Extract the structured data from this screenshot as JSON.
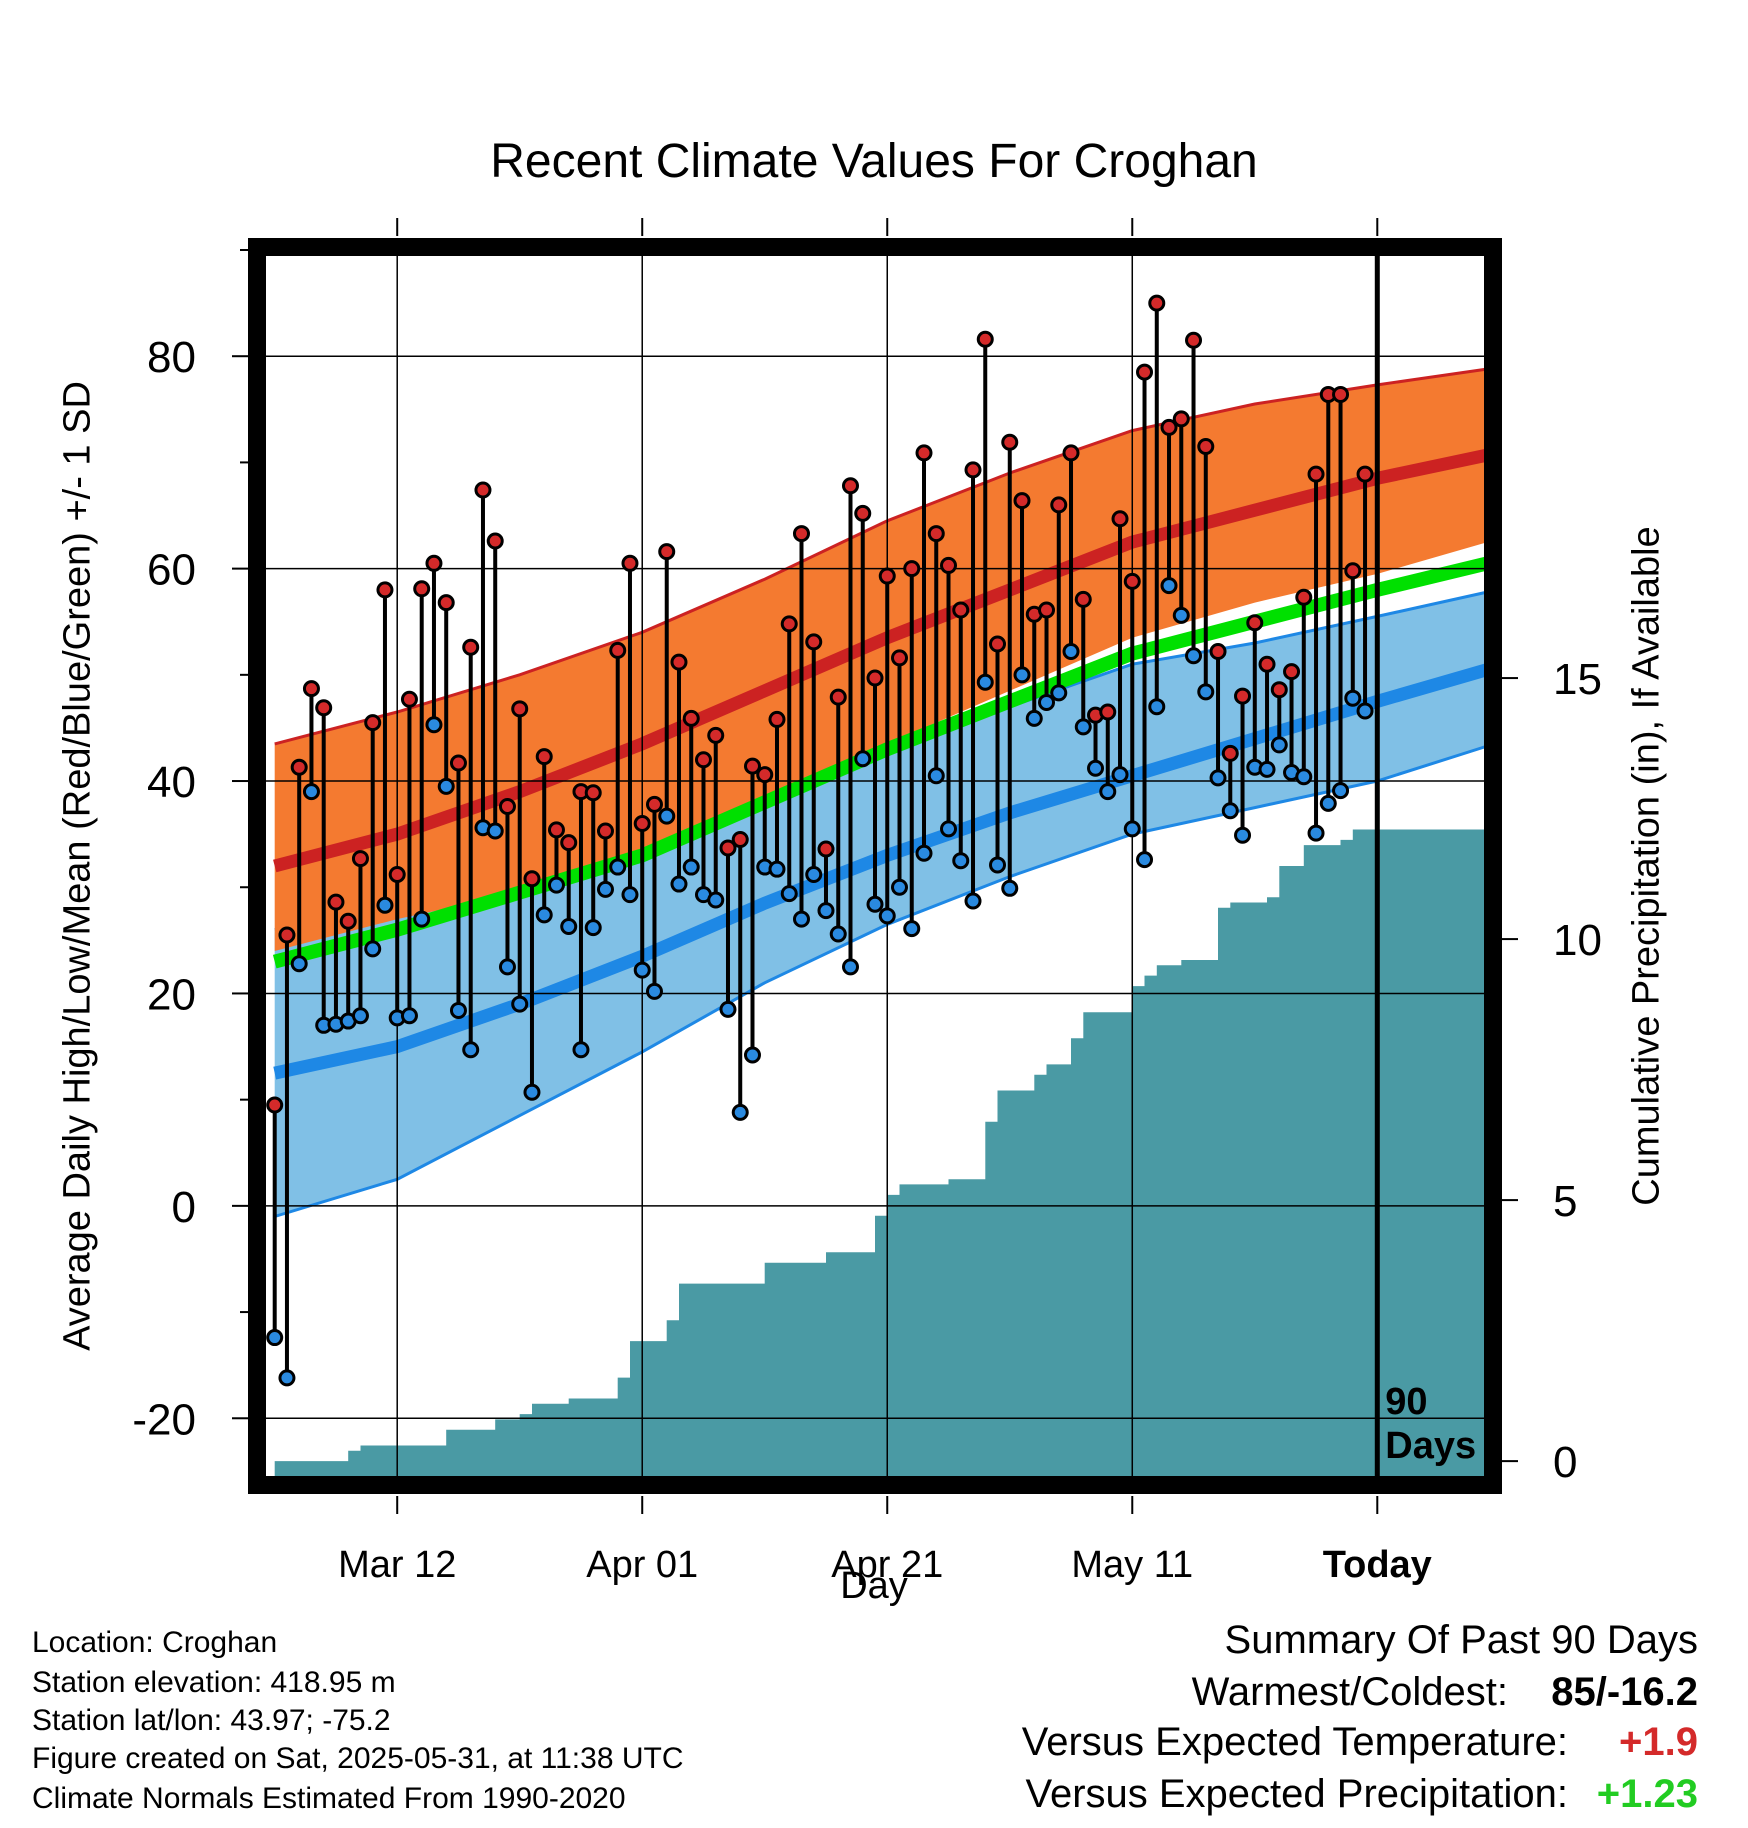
{
  "chart_data": {
    "type": "line",
    "title": "Recent Climate Values For Croghan",
    "xlabel": "Day",
    "ylabel_left": "Average Daily High/Low/Mean (Red/Blue/Green) +/- 1 SD",
    "ylabel_right": "Cumulative Precipitation (in), If Available",
    "x_tick_labels": [
      "Mar 12",
      "Apr 01",
      "Apr 21",
      "May 11",
      "Today"
    ],
    "x_tick_days": [
      10,
      30,
      50,
      70,
      90
    ],
    "y_ticks_left": [
      -20,
      0,
      20,
      40,
      60,
      80
    ],
    "y_ticks_right": [
      0,
      5,
      10,
      15
    ],
    "ylim_left": [
      -26,
      90
    ],
    "xlim_days": [
      -1.2,
      99.2
    ],
    "grid": true,
    "today_day": 90,
    "today_label": "90\nDays",
    "colors": {
      "high": "#cc2222",
      "high_band": "#f47a30",
      "low": "#1e88e5",
      "low_band": "#80c0e6",
      "mean": "#00e000",
      "precip": "#4a9aa4",
      "high_point": "#d42a2a",
      "low_point": "#2a8ae0"
    },
    "normals": {
      "days": [
        0,
        10,
        20,
        30,
        40,
        50,
        60,
        70,
        80,
        90,
        99
      ],
      "high_mean": [
        32,
        35,
        39,
        43.5,
        48.5,
        53.5,
        58,
        62.5,
        65.5,
        68.5,
        70.7
      ],
      "high_plus_sd": [
        43.5,
        46.5,
        50,
        54,
        59,
        64.5,
        69,
        73,
        75.5,
        77.3,
        78.8
      ],
      "high_minus_sd": [
        24,
        27,
        29.5,
        33,
        38,
        43.5,
        48.5,
        53.5,
        56.8,
        59.5,
        62.5
      ],
      "mean": [
        23,
        26,
        29.5,
        33,
        38,
        43,
        47.5,
        52,
        55,
        58,
        60.5
      ],
      "low_mean": [
        12.5,
        15,
        19,
        23.5,
        28.5,
        33,
        37,
        40.5,
        44,
        47.5,
        50.5
      ],
      "low_plus_sd": [
        26,
        28.5,
        30.5,
        34,
        38.5,
        43,
        47,
        51,
        53,
        55.5,
        57.8
      ],
      "low_minus_sd": [
        -1,
        2.5,
        8.5,
        14.5,
        21,
        26.5,
        31,
        35,
        37.5,
        40,
        43.3
      ]
    },
    "series": [
      {
        "name": "Daily High",
        "values": [
          9.5,
          25.5,
          41.3,
          48.7,
          46.9,
          28.6,
          26.8,
          32.7,
          45.5,
          58,
          31.2,
          47.7,
          58.1,
          60.5,
          56.8,
          41.7,
          52.6,
          67.4,
          62.6,
          37.6,
          46.8,
          30.8,
          42.3,
          35.4,
          34.2,
          39,
          38.9,
          35.3,
          52.3,
          60.5,
          36,
          37.8,
          61.6,
          51.2,
          45.9,
          42,
          44.3,
          33.7,
          34.5,
          41.4,
          40.6,
          45.8,
          54.8,
          63.3,
          53.1,
          33.6,
          47.9,
          67.8,
          65.2,
          49.7,
          59.3,
          51.6,
          60,
          70.9,
          63.3,
          60.3,
          56.1,
          69.3,
          81.6,
          52.9,
          71.9,
          66.4,
          55.7,
          56.1,
          66,
          70.9,
          57.1,
          46.2,
          46.5,
          64.7,
          58.8,
          78.5,
          85,
          73.3,
          74.1,
          81.5,
          71.5,
          52.2,
          42.6,
          48,
          54.9,
          51,
          48.6,
          50.3,
          57.3,
          68.9,
          76.4,
          76.4,
          59.8,
          68.9
        ]
      },
      {
        "name": "Daily Low",
        "values": [
          -12.4,
          -16.2,
          22.8,
          39,
          17,
          17.1,
          17.4,
          17.9,
          24.2,
          28.3,
          17.7,
          17.9,
          27,
          45.3,
          39.5,
          18.4,
          14.7,
          35.6,
          35.3,
          22.5,
          19,
          10.7,
          27.4,
          30.2,
          26.3,
          14.7,
          26.2,
          29.8,
          31.9,
          29.3,
          22.2,
          20.2,
          36.7,
          30.3,
          31.9,
          29.3,
          28.8,
          18.5,
          8.8,
          14.2,
          31.9,
          31.7,
          29.4,
          27,
          31.2,
          27.8,
          25.6,
          22.5,
          42.1,
          28.4,
          27.3,
          30,
          26.1,
          33.2,
          40.5,
          35.5,
          32.5,
          28.7,
          49.3,
          32.1,
          29.9,
          50,
          45.9,
          47.4,
          48.3,
          52.2,
          45.1,
          41.2,
          39,
          40.6,
          35.5,
          32.6,
          47,
          58.4,
          55.6,
          51.8,
          48.4,
          40.3,
          37.2,
          34.9,
          41.3,
          41.1,
          43.4,
          40.8,
          40.4,
          35.1,
          37.9,
          39.1,
          47.8,
          46.6
        ]
      }
    ],
    "precipitation": {
      "ylim_in": [
        -0.4,
        23.2
      ],
      "days": [
        0,
        5,
        6,
        7,
        13,
        14,
        17,
        18,
        20,
        21,
        24,
        27,
        28,
        29,
        32,
        33,
        40,
        45,
        49,
        50,
        51,
        55,
        58,
        59,
        61,
        62,
        63,
        65,
        66,
        70,
        71,
        72,
        74,
        75,
        77,
        78,
        81,
        82,
        84,
        87,
        88,
        90,
        99
      ],
      "cumulative_in": [
        0,
        0,
        0.2,
        0.3,
        0.3,
        0.6,
        0.6,
        0.8,
        0.9,
        1.1,
        1.2,
        1.2,
        1.6,
        2.3,
        2.7,
        3.4,
        3.8,
        4,
        4.7,
        5.1,
        5.3,
        5.4,
        6.5,
        7.1,
        7.1,
        7.4,
        7.6,
        8.1,
        8.6,
        9.1,
        9.3,
        9.5,
        9.6,
        9.6,
        10.6,
        10.7,
        10.8,
        11.4,
        11.8,
        11.9,
        12.1,
        12.1,
        12.1
      ]
    }
  },
  "station": {
    "location": "Location: Croghan",
    "elevation": "Station elevation: 418.95 m",
    "latlon": "Station lat/lon: 43.97; -75.2",
    "created": "Figure created on Sat, 2025-05-31, at 11:38 UTC",
    "normals": "Climate Normals Estimated From 1990-2020"
  },
  "summary": {
    "heading": "Summary Of Past 90 Days",
    "warmest_label": "Warmest/Coldest:",
    "warmest_value": "85/-16.2",
    "temp_label": "Versus Expected Temperature:",
    "temp_value": "+1.9",
    "temp_color": "#d42a2a",
    "precip_label": "Versus Expected Precipitation:",
    "precip_value": "+1.23",
    "precip_color": "#22cc22"
  }
}
